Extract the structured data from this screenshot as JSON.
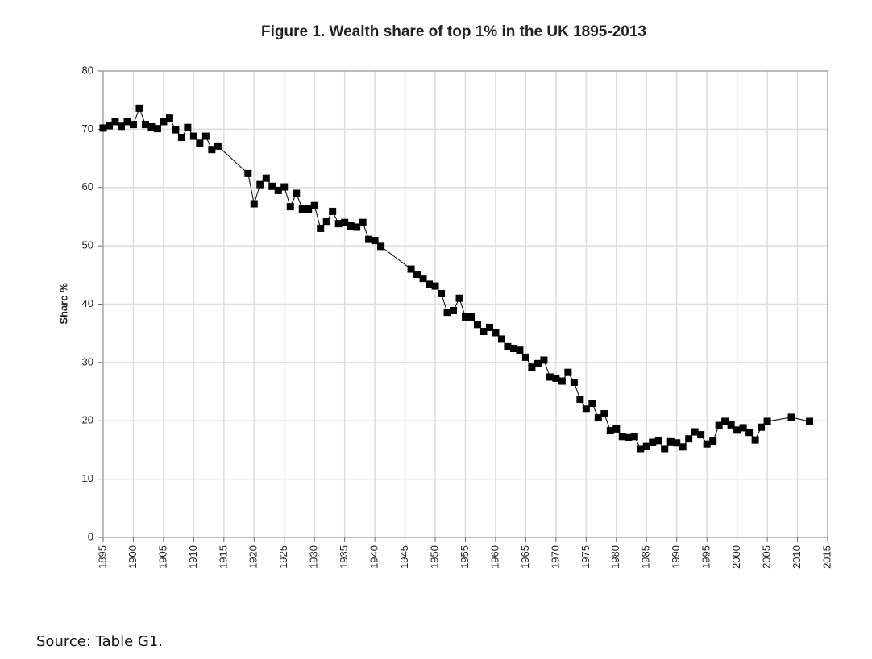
{
  "chart_data": {
    "type": "line",
    "title": "Figure 1. Wealth share of top 1% in the UK 1895-2013",
    "y_label": "Share %",
    "source": "Source: Table G1.",
    "color": "#000000",
    "marker": "square",
    "grid": true,
    "x": [
      1895,
      1896,
      1897,
      1898,
      1899,
      1900,
      1901,
      1902,
      1903,
      1904,
      1905,
      1906,
      1907,
      1908,
      1909,
      1910,
      1911,
      1912,
      1913,
      1914,
      1919,
      1920,
      1921,
      1922,
      1923,
      1924,
      1925,
      1926,
      1927,
      1928,
      1929,
      1930,
      1931,
      1932,
      1933,
      1934,
      1935,
      1936,
      1937,
      1938,
      1939,
      1940,
      1941,
      1946,
      1947,
      1948,
      1949,
      1950,
      1951,
      1952,
      1953,
      1954,
      1955,
      1956,
      1957,
      1958,
      1959,
      1960,
      1961,
      1962,
      1963,
      1964,
      1965,
      1966,
      1967,
      1968,
      1969,
      1970,
      1971,
      1972,
      1973,
      1974,
      1975,
      1976,
      1977,
      1978,
      1979,
      1980,
      1981,
      1982,
      1983,
      1984,
      1985,
      1986,
      1987,
      1988,
      1989,
      1990,
      1991,
      1992,
      1993,
      1994,
      1995,
      1996,
      1997,
      1998,
      1999,
      2000,
      2001,
      2002,
      2003,
      2004,
      2005,
      2009,
      2012
    ],
    "values": [
      70.2,
      70.6,
      71.3,
      70.5,
      71.3,
      70.8,
      73.6,
      70.8,
      70.4,
      70.1,
      71.3,
      71.9,
      69.9,
      68.6,
      70.3,
      68.8,
      67.6,
      68.8,
      66.5,
      67.1,
      62.4,
      57.2,
      60.5,
      61.6,
      60.2,
      59.5,
      60.1,
      56.7,
      59.0,
      56.3,
      56.3,
      56.9,
      53.0,
      54.2,
      55.9,
      53.8,
      54.0,
      53.4,
      53.2,
      54.0,
      51.1,
      50.9,
      49.9,
      46.0,
      45.1,
      44.4,
      43.4,
      43.1,
      41.8,
      38.6,
      38.9,
      41.0,
      37.8,
      37.8,
      36.5,
      35.3,
      36.0,
      35.1,
      34.0,
      32.7,
      32.4,
      32.1,
      30.9,
      29.2,
      29.8,
      30.4,
      27.5,
      27.3,
      26.8,
      28.3,
      26.6,
      23.7,
      22.0,
      23.0,
      20.5,
      21.2,
      18.3,
      18.6,
      17.3,
      17.1,
      17.3,
      15.2,
      15.6,
      16.3,
      16.6,
      15.2,
      16.4,
      16.2,
      15.5,
      16.9,
      18.1,
      17.6,
      16.0,
      16.5,
      19.2,
      19.9,
      19.3,
      18.4,
      18.8,
      18.0,
      16.7,
      18.9,
      19.9,
      20.6,
      19.9
    ],
    "xlim": [
      1895,
      2015
    ],
    "xticks": [
      1895,
      1900,
      1905,
      1910,
      1915,
      1920,
      1925,
      1930,
      1935,
      1940,
      1945,
      1950,
      1955,
      1960,
      1965,
      1970,
      1975,
      1980,
      1985,
      1990,
      1995,
      2000,
      2005,
      2010,
      2015
    ],
    "ylim": [
      0,
      80
    ],
    "yticks": [
      0,
      10,
      20,
      30,
      40,
      50,
      60,
      70,
      80
    ]
  }
}
